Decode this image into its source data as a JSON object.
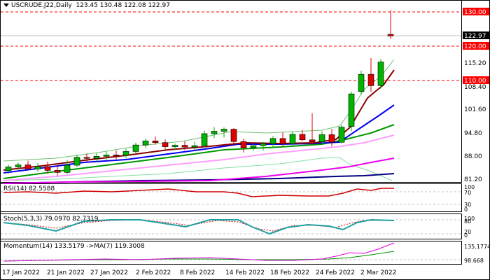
{
  "header": {
    "symbol": "USCRUDE.J22,Daily",
    "ohlc": "123.45 130.48 122.08 122.97"
  },
  "price_panel": {
    "axis_ticks": [
      "115.20",
      "108.40",
      "101.60",
      "94.80",
      "88.00",
      "81.20"
    ],
    "level_labels": [
      "130.00",
      "120.00",
      "110.00"
    ],
    "last_price": "122.97",
    "colors": {
      "up": "#00b400",
      "down": "#e00000",
      "level": "#ff0000",
      "price_tag_bg": "#000000"
    }
  },
  "rsi_panel": {
    "label": "RSI(14) 82.5588",
    "ticks": [
      "100",
      "70",
      "30",
      "0"
    ]
  },
  "stoch_panel": {
    "label": "Stoch(5,3,3) 79.0970 82.7319",
    "ticks": [
      "100",
      "80",
      "20",
      "0"
    ]
  },
  "momentum_panel": {
    "label": "Momentum(14) 133.5179  ->MA(7) 119.3008",
    "ticks": [
      "135.1774",
      "98.668"
    ]
  },
  "x_axis": {
    "dates": [
      "17 Jan 2022",
      "21 Jan 2022",
      "27 Jan 2022",
      "2 Feb 2022",
      "8 Feb 2022",
      "14 Feb 2022",
      "18 Feb 2022",
      "24 Feb 2022",
      "2 Mar 2022"
    ]
  },
  "chart_data": {
    "type": "candlestick",
    "candles": [
      {
        "o": 83.7,
        "h": 85.4,
        "l": 82.8,
        "c": 84.8
      },
      {
        "o": 84.8,
        "h": 86.1,
        "l": 84.0,
        "c": 85.4
      },
      {
        "o": 85.4,
        "h": 86.6,
        "l": 83.9,
        "c": 84.2
      },
      {
        "o": 84.2,
        "h": 85.9,
        "l": 83.4,
        "c": 84.9
      },
      {
        "o": 84.9,
        "h": 86.3,
        "l": 82.9,
        "c": 83.8
      },
      {
        "o": 83.8,
        "h": 85.2,
        "l": 82.1,
        "c": 83.2
      },
      {
        "o": 83.2,
        "h": 86.8,
        "l": 82.7,
        "c": 85.3
      },
      {
        "o": 85.3,
        "h": 88.4,
        "l": 84.8,
        "c": 87.6
      },
      {
        "o": 87.6,
        "h": 88.7,
        "l": 86.2,
        "c": 87.3
      },
      {
        "o": 87.3,
        "h": 88.8,
        "l": 86.4,
        "c": 87.9
      },
      {
        "o": 87.9,
        "h": 89.3,
        "l": 86.9,
        "c": 88.3
      },
      {
        "o": 88.3,
        "h": 89.6,
        "l": 87.0,
        "c": 88.2
      },
      {
        "o": 88.2,
        "h": 90.1,
        "l": 87.3,
        "c": 89.3
      },
      {
        "o": 89.3,
        "h": 91.9,
        "l": 88.6,
        "c": 91.2
      },
      {
        "o": 91.2,
        "h": 93.1,
        "l": 90.3,
        "c": 92.4
      },
      {
        "o": 92.4,
        "h": 93.7,
        "l": 91.3,
        "c": 91.9
      },
      {
        "o": 91.9,
        "h": 92.8,
        "l": 89.9,
        "c": 90.7
      },
      {
        "o": 90.7,
        "h": 91.6,
        "l": 89.8,
        "c": 91.1
      },
      {
        "o": 91.1,
        "h": 92.3,
        "l": 89.7,
        "c": 90.6
      },
      {
        "o": 90.6,
        "h": 92.1,
        "l": 89.8,
        "c": 91.0
      },
      {
        "o": 91.0,
        "h": 95.4,
        "l": 90.5,
        "c": 94.5
      },
      {
        "o": 94.5,
        "h": 96.4,
        "l": 93.2,
        "c": 95.2
      },
      {
        "o": 95.2,
        "h": 96.3,
        "l": 93.4,
        "c": 95.8
      },
      {
        "o": 95.8,
        "h": 96.1,
        "l": 91.3,
        "c": 92.2
      },
      {
        "o": 92.2,
        "h": 93.0,
        "l": 89.0,
        "c": 90.4
      },
      {
        "o": 90.4,
        "h": 91.4,
        "l": 89.5,
        "c": 91.0
      },
      {
        "o": 91.0,
        "h": 92.1,
        "l": 89.6,
        "c": 91.6
      },
      {
        "o": 91.6,
        "h": 93.8,
        "l": 90.3,
        "c": 93.1
      },
      {
        "o": 93.1,
        "h": 94.8,
        "l": 90.9,
        "c": 91.6
      },
      {
        "o": 91.6,
        "h": 95.1,
        "l": 91.0,
        "c": 94.3
      },
      {
        "o": 94.3,
        "h": 95.6,
        "l": 92.3,
        "c": 92.7
      },
      {
        "o": 92.7,
        "h": 100.5,
        "l": 91.4,
        "c": 92.1
      },
      {
        "o": 92.1,
        "h": 95.2,
        "l": 91.2,
        "c": 94.2
      },
      {
        "o": 94.2,
        "h": 95.9,
        "l": 90.8,
        "c": 92.0
      },
      {
        "o": 92.0,
        "h": 97.0,
        "l": 91.6,
        "c": 96.4
      },
      {
        "o": 96.6,
        "h": 106.8,
        "l": 95.2,
        "c": 106.1
      },
      {
        "o": 106.8,
        "h": 112.9,
        "l": 105.9,
        "c": 111.8
      },
      {
        "o": 111.8,
        "h": 116.5,
        "l": 106.7,
        "c": 108.5
      },
      {
        "o": 108.5,
        "h": 116.2,
        "l": 107.6,
        "c": 115.4
      },
      {
        "o": 123.45,
        "h": 130.48,
        "l": 122.08,
        "c": 122.97
      }
    ]
  }
}
